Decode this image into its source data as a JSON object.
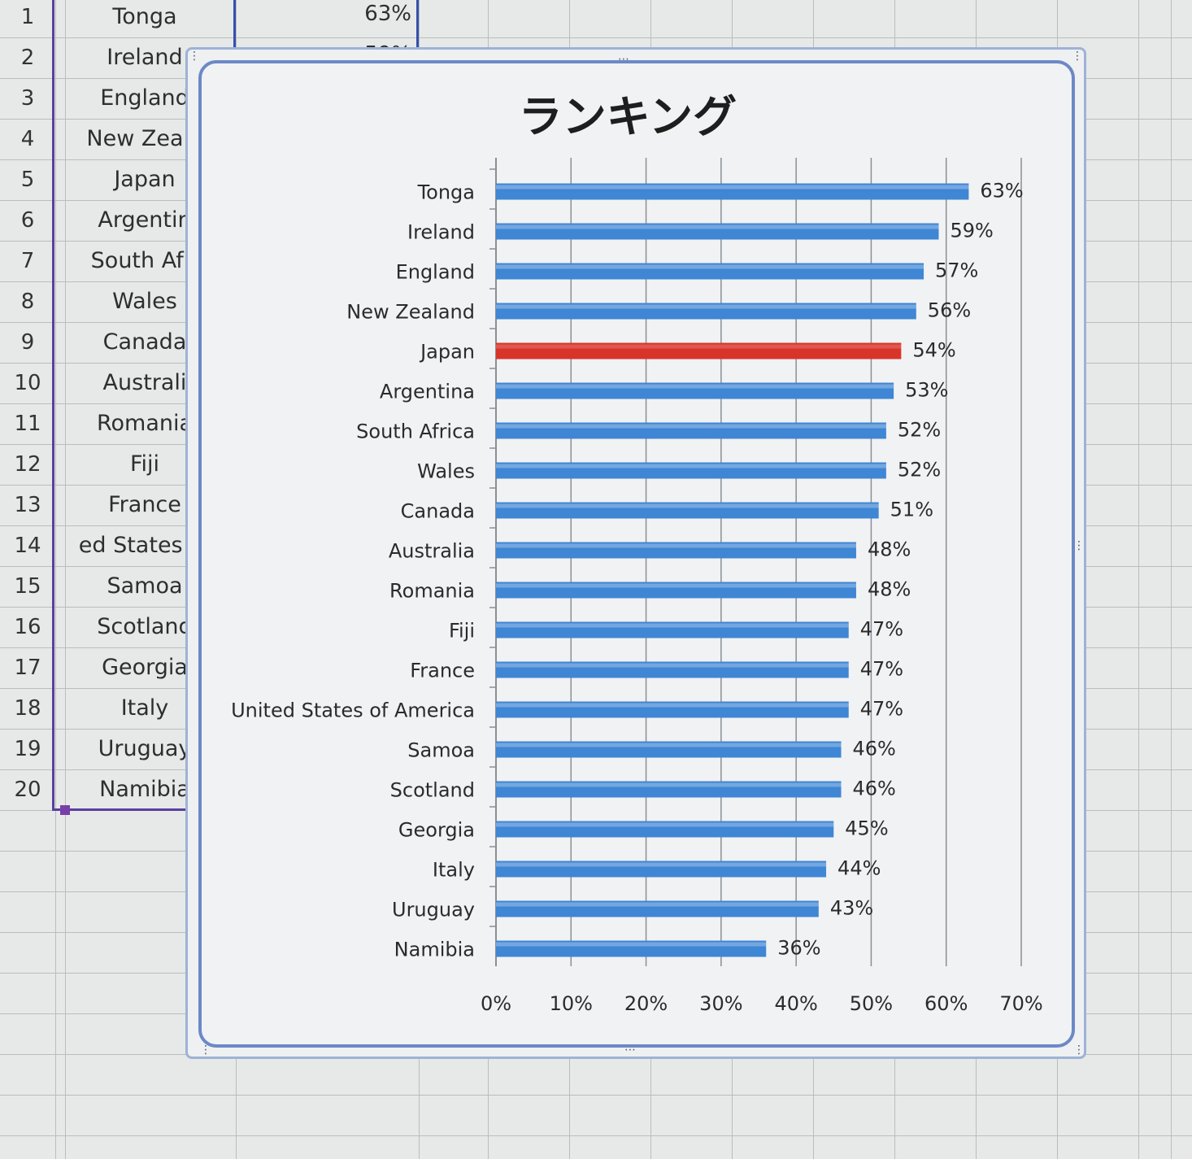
{
  "sheet": {
    "rows": [
      {
        "num": "1",
        "country": "Tonga",
        "value": "63%"
      },
      {
        "num": "2",
        "country": "Ireland",
        "value": "59%"
      },
      {
        "num": "3",
        "country": "England",
        "value": ""
      },
      {
        "num": "4",
        "country": "New Zeala",
        "value": ""
      },
      {
        "num": "5",
        "country": "Japan",
        "value": ""
      },
      {
        "num": "6",
        "country": "Argentin",
        "value": ""
      },
      {
        "num": "7",
        "country": "South Afri",
        "value": ""
      },
      {
        "num": "8",
        "country": "Wales",
        "value": ""
      },
      {
        "num": "9",
        "country": "Canada",
        "value": ""
      },
      {
        "num": "10",
        "country": "Australi",
        "value": ""
      },
      {
        "num": "11",
        "country": "Romania",
        "value": ""
      },
      {
        "num": "12",
        "country": "Fiji",
        "value": ""
      },
      {
        "num": "13",
        "country": "France",
        "value": ""
      },
      {
        "num": "14",
        "country": "ed States of",
        "value": ""
      },
      {
        "num": "15",
        "country": "Samoa",
        "value": ""
      },
      {
        "num": "16",
        "country": "Scotland",
        "value": ""
      },
      {
        "num": "17",
        "country": "Georgia",
        "value": ""
      },
      {
        "num": "18",
        "country": "Italy",
        "value": ""
      },
      {
        "num": "19",
        "country": "Uruguay",
        "value": ""
      },
      {
        "num": "20",
        "country": "Namibia",
        "value": ""
      }
    ]
  },
  "colors": {
    "bar": "#3f86d4",
    "bar_highlight": "#d8342a",
    "gridline": "#8a8f95"
  },
  "chart_data": {
    "type": "bar",
    "orientation": "horizontal",
    "title": "ランキング",
    "categories": [
      "Tonga",
      "Ireland",
      "England",
      "New Zealand",
      "Japan",
      "Argentina",
      "South Africa",
      "Wales",
      "Canada",
      "Australia",
      "Romania",
      "Fiji",
      "France",
      "United States of America",
      "Samoa",
      "Scotland",
      "Georgia",
      "Italy",
      "Uruguay",
      "Namibia"
    ],
    "values": [
      63,
      59,
      57,
      56,
      54,
      53,
      52,
      52,
      51,
      48,
      48,
      47,
      47,
      47,
      46,
      46,
      45,
      44,
      43,
      36
    ],
    "data_labels": [
      "63%",
      "59%",
      "57%",
      "56%",
      "54%",
      "53%",
      "52%",
      "52%",
      "51%",
      "48%",
      "48%",
      "47%",
      "47%",
      "47%",
      "46%",
      "46%",
      "45%",
      "44%",
      "43%",
      "36%"
    ],
    "highlight_category": "Japan",
    "xlim": [
      0,
      70
    ],
    "xticks": [
      "0%",
      "10%",
      "20%",
      "30%",
      "40%",
      "50%",
      "60%",
      "70%"
    ],
    "grid": true,
    "legend": "none",
    "xlabel": "",
    "ylabel": ""
  }
}
